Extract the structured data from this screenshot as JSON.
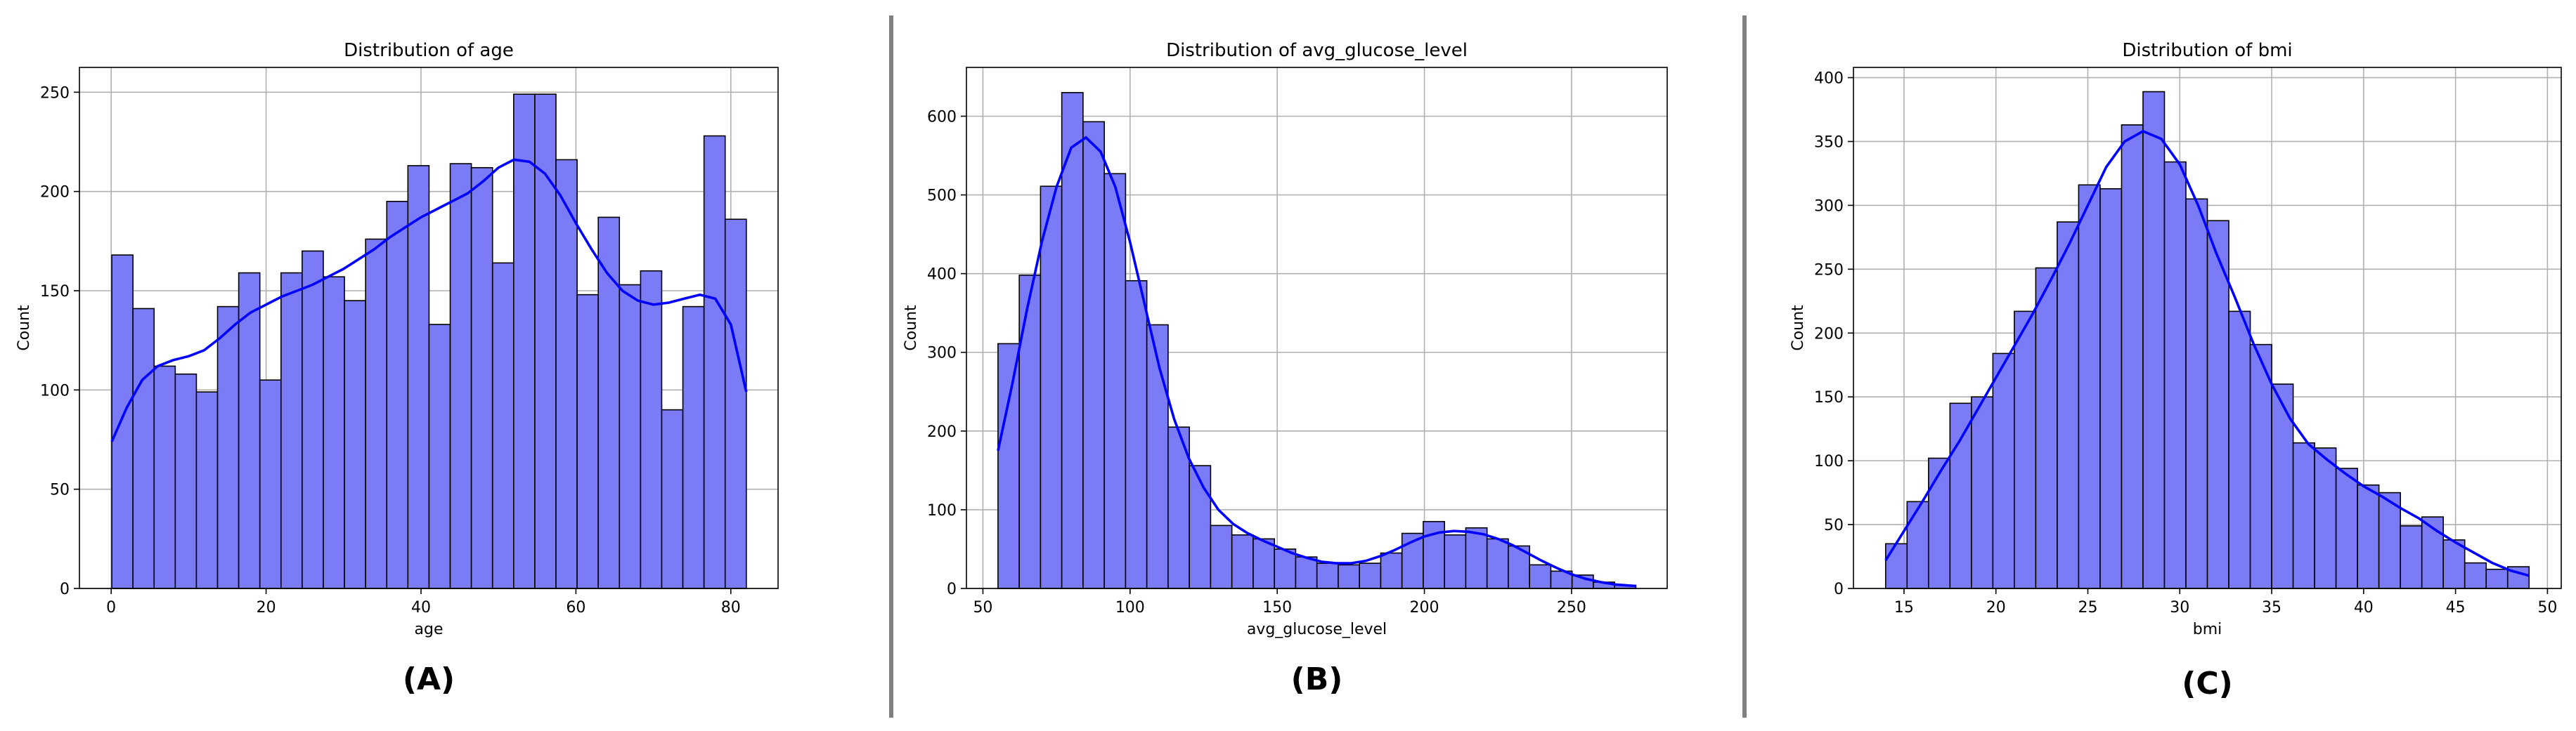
{
  "colors": {
    "bar_fill": "#7b7bf6",
    "bar_edge": "#000000",
    "kde": "#0000ff",
    "divider": "#808080",
    "grid": "#b0b0b0"
  },
  "chart_data": [
    {
      "type": "bar",
      "subtype": "histogram_with_kde",
      "title": "Distribution of age",
      "xlabel": "age",
      "ylabel": "Count",
      "panel_label": "(A)",
      "grid": true,
      "xlim": [
        -4.1,
        86.1
      ],
      "ylim": [
        0,
        262.5
      ],
      "xticks": [
        0,
        20,
        40,
        60,
        80
      ],
      "yticks": [
        0,
        50,
        100,
        150,
        200,
        250
      ],
      "bin_start": 0.08,
      "bin_width": 2.7307,
      "counts": [
        168,
        141,
        112,
        108,
        99,
        142,
        159,
        105,
        159,
        170,
        157,
        145,
        176,
        195,
        213,
        133,
        214,
        212,
        164,
        249,
        249,
        216,
        148,
        187,
        153,
        160,
        90,
        142,
        228,
        186
      ],
      "kde": {
        "x": [
          0.08,
          2,
          4,
          6,
          8,
          10,
          12,
          14,
          16,
          18,
          20,
          22,
          24,
          26,
          28,
          30,
          32,
          34,
          36,
          38,
          40,
          42,
          44,
          46,
          48,
          50,
          52,
          54,
          56,
          58,
          60,
          62,
          64,
          66,
          68,
          70,
          72,
          74,
          76,
          78,
          80,
          82
        ],
        "y": [
          74,
          91,
          105,
          112,
          115,
          117,
          120,
          126,
          133,
          139,
          143,
          147,
          150,
          153,
          157,
          161,
          166,
          171,
          177,
          182,
          187,
          191,
          195,
          199,
          205,
          212,
          216,
          215,
          209,
          198,
          184,
          171,
          159,
          150,
          145,
          143,
          144,
          146,
          148,
          146,
          133,
          99
        ]
      }
    },
    {
      "type": "bar",
      "subtype": "histogram_with_kde",
      "title": "Distribution of avg_glucose_level",
      "xlabel": "avg_glucose_level",
      "ylabel": "Count",
      "panel_label": "(B)",
      "grid": true,
      "xlim": [
        44.4,
        282.5
      ],
      "ylim": [
        0,
        662
      ],
      "xticks": [
        50,
        100,
        150,
        200,
        250
      ],
      "yticks": [
        0,
        100,
        200,
        300,
        400,
        500,
        600
      ],
      "bin_start": 55.12,
      "bin_width": 7.2247,
      "counts": [
        311,
        398,
        511,
        630,
        593,
        527,
        391,
        335,
        205,
        156,
        80,
        68,
        63,
        50,
        40,
        32,
        30,
        32,
        45,
        70,
        85,
        68,
        77,
        63,
        54,
        30,
        22,
        17,
        8,
        4
      ],
      "kde": {
        "x": [
          55.12,
          60,
          65,
          70,
          75,
          80,
          85,
          90,
          95,
          100,
          105,
          110,
          115,
          120,
          125,
          130,
          135,
          140,
          145,
          150,
          155,
          160,
          165,
          170,
          175,
          180,
          185,
          190,
          195,
          200,
          205,
          210,
          215,
          220,
          225,
          230,
          235,
          240,
          245,
          250,
          255,
          260,
          265,
          271.86
        ],
        "y": [
          175,
          260,
          355,
          440,
          510,
          560,
          573,
          555,
          510,
          440,
          360,
          280,
          215,
          165,
          128,
          100,
          82,
          70,
          61,
          53,
          45,
          39,
          34,
          32,
          32,
          35,
          41,
          49,
          58,
          66,
          71,
          73,
          72,
          69,
          63,
          55,
          45,
          35,
          26,
          18,
          12,
          8,
          5,
          3
        ]
      }
    },
    {
      "type": "bar",
      "subtype": "histogram_with_kde",
      "title": "Distribution of bmi",
      "xlabel": "bmi",
      "ylabel": "Count",
      "panel_label": "(C)",
      "grid": true,
      "xlim": [
        12.25,
        50.75
      ],
      "ylim": [
        0,
        408
      ],
      "xticks": [
        15,
        20,
        25,
        30,
        35,
        40,
        45,
        50
      ],
      "yticks": [
        0,
        50,
        100,
        150,
        200,
        250,
        300,
        350,
        400
      ],
      "bin_start": 14.0,
      "bin_width": 1.1667,
      "counts": [
        35,
        68,
        102,
        145,
        150,
        184,
        217,
        251,
        287,
        316,
        313,
        363,
        389,
        334,
        305,
        288,
        217,
        191,
        160,
        114,
        110,
        94,
        81,
        75,
        49,
        56,
        38,
        20,
        15,
        17
      ],
      "kde": {
        "x": [
          14.0,
          15,
          16,
          17,
          18,
          19,
          20,
          21,
          22,
          23,
          24,
          25,
          26,
          27,
          28,
          29,
          30,
          31,
          32,
          33,
          34,
          35,
          36,
          37,
          38,
          39,
          40,
          41,
          42,
          43,
          44,
          45,
          46,
          47,
          48,
          49
        ],
        "y": [
          22,
          45,
          68,
          92,
          115,
          140,
          165,
          190,
          215,
          242,
          270,
          300,
          330,
          350,
          358,
          352,
          332,
          300,
          262,
          228,
          192,
          160,
          133,
          113,
          101,
          90,
          80,
          72,
          63,
          55,
          45,
          36,
          28,
          20,
          14,
          10
        ]
      }
    }
  ]
}
